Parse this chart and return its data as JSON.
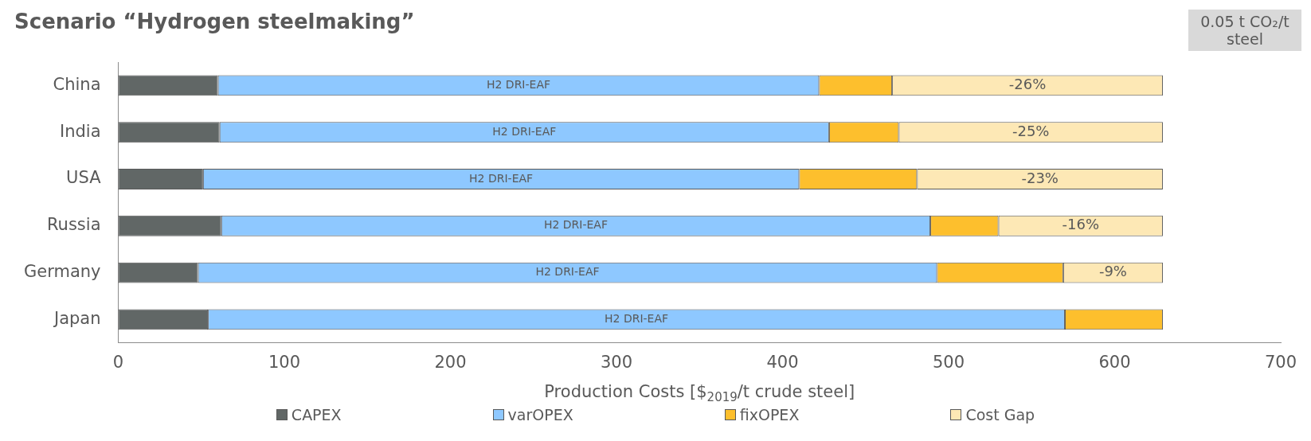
{
  "chart_data": {
    "type": "bar",
    "orientation": "horizontal",
    "stacked": true,
    "title": "Scenario “Hydrogen steelmaking”",
    "xlabel": "Production Costs [$$_{2019}$/t crude steel]",
    "annotations": [
      "0.05 t CO₂/t steel",
      "-26%",
      "-25%",
      "-23%",
      "-16%",
      "-9%"
    ],
    "categories": [
      "China",
      "India",
      "USA",
      "Russia",
      "Germany",
      "Japan"
    ],
    "series": [
      {
        "name": "CAPEX",
        "color": "#616766",
        "values": [
          60,
          61,
          51,
          62,
          48,
          54
        ]
      },
      {
        "name": "varOPEX",
        "color": "#8ec8ff",
        "values": [
          362,
          367,
          359,
          427,
          445,
          516
        ],
        "value_labels": [
          "H2 DRI-EAF",
          "H2 DRI-EAF",
          "H2 DRI-EAF",
          "H2 DRI-EAF",
          "H2 DRI-EAF",
          "H2 DRI-EAF"
        ]
      },
      {
        "name": "fixOPEX",
        "color": "#fdbf2d",
        "values": [
          44,
          42,
          71,
          41,
          76,
          59
        ]
      },
      {
        "name": "Cost Gap",
        "color": "#fde8b5",
        "values": [
          163,
          159,
          148,
          99,
          60,
          null
        ]
      }
    ],
    "xlim": [
      0,
      700
    ],
    "xticks": [
      0,
      100,
      200,
      300,
      400,
      500,
      600,
      700
    ],
    "grid": false,
    "legend": "bottom"
  }
}
